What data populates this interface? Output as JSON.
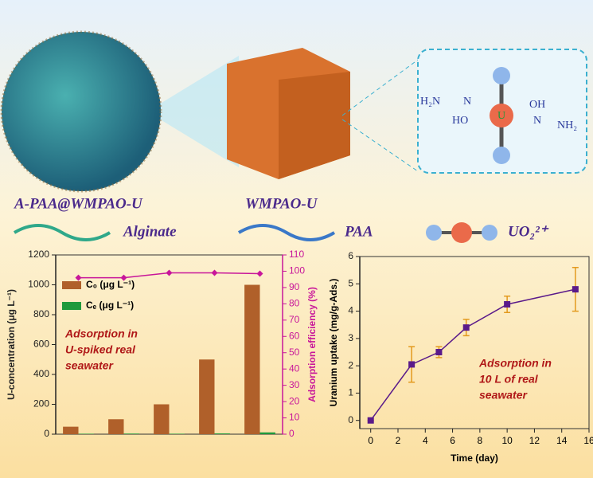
{
  "illustration": {
    "labels": [
      "A-PAA@WMPAO-U",
      "WMPAO-U"
    ],
    "legend": [
      "Alginate",
      "PAA",
      "UO₂²⁺"
    ],
    "molecule": [
      "H₂N",
      "N",
      "HO",
      "U",
      "OH",
      "N",
      "NH₂"
    ]
  },
  "chart_data": [
    {
      "type": "bar",
      "categories": [
        null,
        null,
        null,
        null,
        null
      ],
      "series": [
        {
          "name": "C₀ (μg L⁻¹)",
          "color": "#b0602a",
          "values": [
            50,
            100,
            200,
            500,
            1000
          ]
        },
        {
          "name": "Cₑ (μg L⁻¹)",
          "color": "#1f9a3c",
          "values": [
            3,
            4,
            3,
            5,
            12
          ]
        },
        {
          "name": "Adsorption efficiency",
          "color": "#c8169a",
          "axis": "y2",
          "values": [
            96,
            96,
            99,
            99,
            98.5
          ]
        }
      ],
      "ylabel": "U-concentration (μg L⁻¹)",
      "y2label": "Adsorption efficiency (%)",
      "ylim": [
        0,
        1200
      ],
      "yticks": [
        0,
        200,
        400,
        600,
        800,
        1000,
        1200
      ],
      "y2lim": [
        0,
        110
      ],
      "y2ticks": [
        0,
        10,
        20,
        30,
        40,
        50,
        60,
        70,
        80,
        90,
        100,
        110
      ],
      "annotation": [
        "Adsorption in",
        "U-spiked real",
        "seawater"
      ]
    },
    {
      "type": "scatter",
      "x": [
        0,
        3,
        5,
        7,
        10,
        15
      ],
      "values": [
        0,
        2.05,
        2.5,
        3.4,
        4.25,
        4.8
      ],
      "errors": [
        0,
        0.65,
        0.2,
        0.3,
        0.3,
        0.8
      ],
      "color": "#5a1a8a",
      "error_color": "#e39a1e",
      "xlabel": "Time (day)",
      "ylabel": "Uranium uptake (mg/g-Ads.)",
      "xlim": [
        -0.8,
        16
      ],
      "xticks": [
        0,
        2,
        4,
        6,
        8,
        10,
        12,
        14,
        16
      ],
      "ylim": [
        -0.3,
        6
      ],
      "yticks": [
        0,
        1,
        2,
        3,
        4,
        5,
        6
      ],
      "annotation": [
        "Adsorption in",
        "10 L of real",
        "seawater"
      ]
    }
  ]
}
